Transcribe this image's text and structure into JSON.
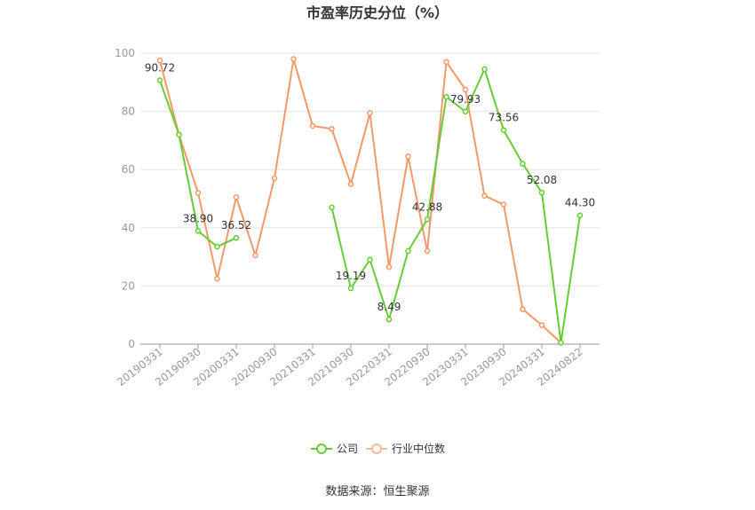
{
  "chart_data": {
    "type": "line",
    "title": "市盈率历史分位（%）",
    "source": "数据来源：恒生聚源",
    "ylim": [
      0,
      100
    ],
    "yticks": [
      0,
      20,
      40,
      60,
      80,
      100
    ],
    "grid": true,
    "legend_position": "bottom",
    "x": [
      "20190331",
      "20190630",
      "20190930",
      "20191231",
      "20200331",
      "20200630",
      "20200930",
      "20201231",
      "20210331",
      "20210630",
      "20210930",
      "20211231",
      "20220331",
      "20220630",
      "20220930",
      "20221231",
      "20230331",
      "20230630",
      "20230930",
      "20231231",
      "20240331",
      "20240630",
      "20240822"
    ],
    "xtick_labels": [
      "20190331",
      "20190930",
      "20200331",
      "20200930",
      "20210331",
      "20210930",
      "20220331",
      "20220930",
      "20230331",
      "20230930",
      "20240331",
      "20240822"
    ],
    "series": [
      {
        "name": "公司",
        "color": "#66cc33",
        "values": [
          90.72,
          72,
          38.9,
          33.5,
          36.52,
          null,
          null,
          null,
          null,
          47,
          19.19,
          29,
          8.49,
          32,
          42.88,
          85,
          79.93,
          94.5,
          73.56,
          62,
          52.08,
          0.5,
          44.3
        ]
      },
      {
        "name": "行业中位数",
        "color": "#f39868",
        "values": [
          97.5,
          72,
          52,
          22.5,
          50.5,
          30.5,
          57,
          98,
          75,
          74,
          55,
          79.5,
          26.5,
          64.5,
          32,
          97,
          87.5,
          51,
          48,
          12,
          6.5,
          0.5,
          null
        ]
      }
    ],
    "data_labels": [
      {
        "series": 0,
        "index": 0,
        "text": "90.72"
      },
      {
        "series": 0,
        "index": 2,
        "text": "38.90"
      },
      {
        "series": 0,
        "index": 4,
        "text": "36.52"
      },
      {
        "series": 0,
        "index": 10,
        "text": "19.19"
      },
      {
        "series": 0,
        "index": 12,
        "text": "8.49"
      },
      {
        "series": 0,
        "index": 14,
        "text": "42.88"
      },
      {
        "series": 0,
        "index": 16,
        "text": "79.93"
      },
      {
        "series": 0,
        "index": 18,
        "text": "73.56"
      },
      {
        "series": 0,
        "index": 20,
        "text": "52.08"
      },
      {
        "series": 0,
        "index": 22,
        "text": "44.30"
      }
    ]
  }
}
